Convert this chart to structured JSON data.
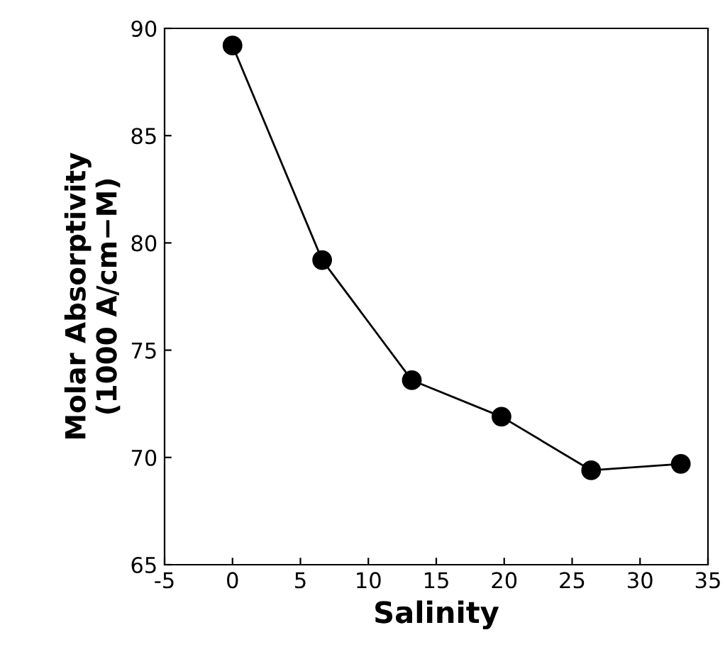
{
  "chart_data": {
    "type": "line",
    "xlabel": "Salinity",
    "ylabel": "Molar Absorptivity\n(1000 A/cm−M)",
    "x": [
      0,
      6.6,
      13.2,
      19.8,
      26.4,
      33.0
    ],
    "series": [
      {
        "color": "#000000",
        "values": [
          89.2,
          79.2,
          73.6,
          71.9,
          69.4,
          69.7
        ]
      }
    ],
    "xlim": [
      -5,
      35
    ],
    "xticks": [
      -5,
      0,
      5,
      10,
      15,
      20,
      25,
      30,
      35
    ],
    "ylim": [
      65,
      90
    ],
    "yticks": [
      65,
      70,
      75,
      80,
      85,
      90
    ],
    "marker": "circle",
    "line_style": "solid",
    "grid": false
  }
}
